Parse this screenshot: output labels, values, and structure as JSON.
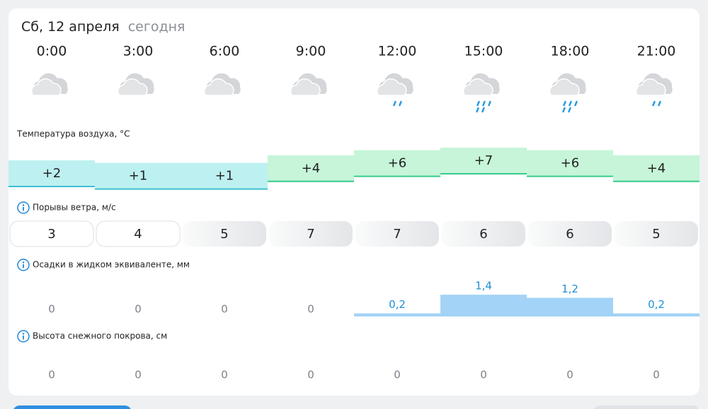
{
  "header": {
    "date": "Сб, 12 апреля",
    "today": "сегодня"
  },
  "times": [
    "0:00",
    "3:00",
    "6:00",
    "9:00",
    "12:00",
    "15:00",
    "18:00",
    "21:00"
  ],
  "temperature": {
    "title": "Температура воздуха, °C",
    "values": [
      {
        "value": 2,
        "label": "+2",
        "color": "#bdf0f0"
      },
      {
        "value": 1,
        "label": "+1",
        "color": "#bdf0f0"
      },
      {
        "value": 1,
        "label": "+1",
        "color": "#bdf0f0"
      },
      {
        "value": 4,
        "label": "+4",
        "color": "#c6f5d9"
      },
      {
        "value": 6,
        "label": "+6",
        "color": "#c6f5d9"
      },
      {
        "value": 7,
        "label": "+7",
        "color": "#c6f5d9"
      },
      {
        "value": 6,
        "label": "+6",
        "color": "#c6f5d9"
      },
      {
        "value": 4,
        "label": "+4",
        "color": "#c6f5d9"
      }
    ]
  },
  "wind": {
    "title": "Порывы ветра, м/с",
    "values": [
      3,
      4,
      5,
      7,
      7,
      6,
      6,
      5
    ]
  },
  "precipitation": {
    "title": "Осадки в жидком эквиваленте, мм",
    "values": [
      {
        "value": 0,
        "label": "0"
      },
      {
        "value": 0,
        "label": "0"
      },
      {
        "value": 0,
        "label": "0"
      },
      {
        "value": 0,
        "label": "0"
      },
      {
        "value": 0.2,
        "label": "0,2"
      },
      {
        "value": 1.4,
        "label": "1,4"
      },
      {
        "value": 1.2,
        "label": "1,2"
      },
      {
        "value": 0.2,
        "label": "0,2"
      }
    ]
  },
  "snow": {
    "title": "Высота снежного покрова, см",
    "values": [
      0,
      0,
      0,
      0,
      0,
      0,
      0,
      0
    ]
  }
}
